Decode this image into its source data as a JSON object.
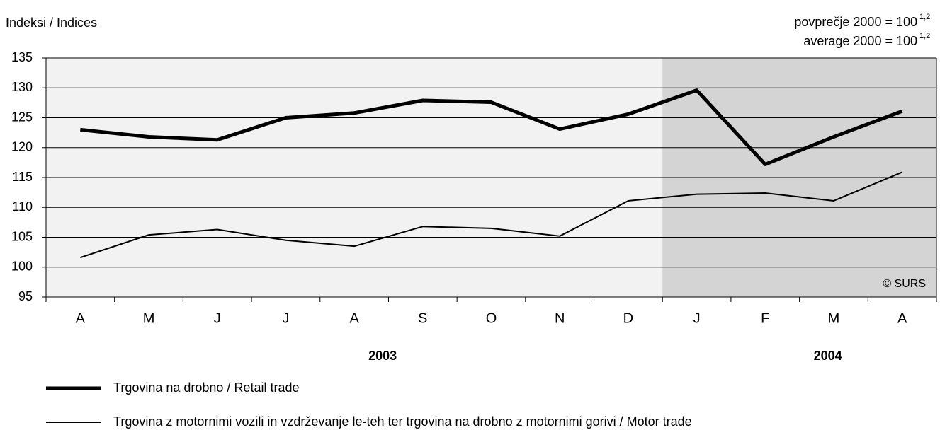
{
  "chart_data": {
    "type": "line",
    "y_label": "Indeksi / Indices",
    "annotations": [
      {
        "text": "povprečje 2000 = 100",
        "sup": "1,2"
      },
      {
        "text": "average 2000 = 100",
        "sup": "1,2"
      }
    ],
    "credit": "© SURS",
    "categories": [
      "A",
      "M",
      "J",
      "J",
      "A",
      "S",
      "O",
      "N",
      "D",
      "J",
      "F",
      "M",
      "A"
    ],
    "groups": [
      {
        "label": "2003",
        "span": 9,
        "shaded": false
      },
      {
        "label": "2004",
        "span": 4,
        "shaded": true
      }
    ],
    "series": [
      {
        "name": "Trgovina na drobno / Retail trade",
        "color": "#000000",
        "width": 5,
        "values": [
          123.0,
          121.8,
          121.3,
          125.0,
          125.8,
          127.9,
          127.6,
          123.1,
          125.6,
          129.6,
          117.2,
          121.8,
          126.1
        ]
      },
      {
        "name": "Trgovina z motornimi vozili in vzdrževanje le-teh ter trgovina na drobno z motornimi gorivi / Motor trade",
        "color": "#000000",
        "width": 2,
        "values": [
          101.6,
          105.4,
          106.3,
          104.5,
          103.5,
          106.8,
          106.5,
          105.2,
          111.1,
          112.2,
          112.4,
          111.1,
          115.9
        ]
      }
    ],
    "ylim": [
      95,
      135
    ],
    "yticks": [
      95,
      100,
      105,
      110,
      115,
      120,
      125,
      130,
      135
    ],
    "grid": true
  }
}
